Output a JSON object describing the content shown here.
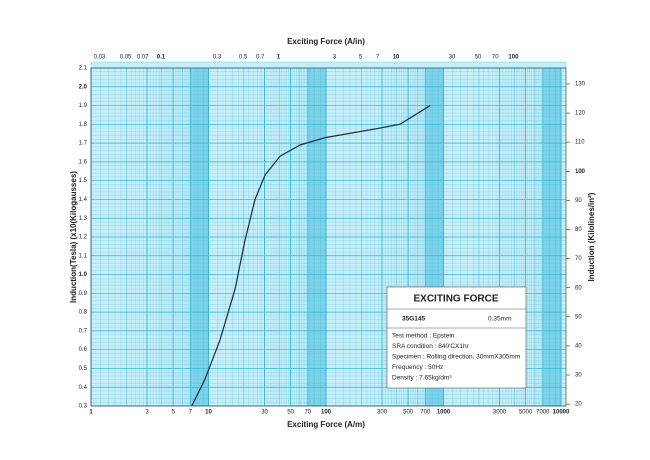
{
  "chart_data": {
    "type": "line",
    "xscale": "log",
    "title_top": "Exciting Force (A/in)",
    "xlabel": "Exciting Force (A/m)",
    "ylabel": "Induction(Tesla) (x10(Kilogausses)",
    "y2label": "Induction (Kilolines/in²)",
    "x": [
      7.2,
      9.3,
      12.5,
      16.8,
      20.4,
      24.9,
      30.3,
      40.6,
      60,
      100,
      288,
      424,
      770
    ],
    "values": [
      0.3,
      0.44,
      0.65,
      0.92,
      1.18,
      1.4,
      1.53,
      1.63,
      1.69,
      1.73,
      1.78,
      1.8,
      1.9
    ],
    "color": "#1a2a3a",
    "xlim": [
      1,
      10000
    ],
    "xticks": [
      1,
      3,
      5,
      7,
      10,
      30,
      50,
      70,
      100,
      300,
      500,
      700,
      1000,
      3000,
      5000,
      7000,
      10000
    ],
    "x2lim": [
      0.0254,
      254
    ],
    "x2ticks": [
      0.03,
      0.05,
      0.07,
      0.1,
      0.3,
      0.5,
      0.7,
      1,
      3,
      5,
      7,
      10,
      30,
      50,
      70,
      100
    ],
    "ylim": [
      0.3,
      2.1
    ],
    "yticks": [
      0.3,
      0.4,
      0.5,
      0.6,
      0.7,
      0.8,
      0.9,
      {
        "value": 1,
        "label": "1.0"
      },
      1.1,
      1.2,
      1.3,
      1.4,
      1.5,
      1.6,
      1.7,
      1.8,
      1.9,
      {
        "value": 2,
        "label": "2.0"
      },
      2.1
    ],
    "y2lim": [
      19.3548,
      135.4836
    ],
    "y2ticks": [
      20,
      30,
      40,
      50,
      60,
      70,
      80,
      90,
      100,
      110,
      120,
      130
    ],
    "grid": true,
    "info_box": {
      "title": "EXCITING FORCE",
      "grade": "35G145",
      "thickness": "0.35mm",
      "lines": [
        "Test method : Epstein",
        "SRA condition : 840'CX1hr",
        "Specimen : Rolling direction, 30mmX305mm",
        "Frequency : 50Hz",
        "Density : 7.65kg/dm³"
      ]
    }
  }
}
